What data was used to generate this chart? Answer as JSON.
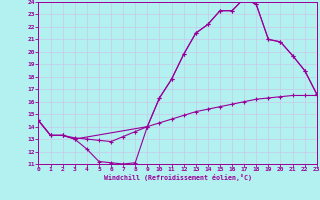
{
  "bg_color": "#b3f0f0",
  "grid_color": "#c8c8e8",
  "line_color": "#990099",
  "xlim": [
    0,
    23
  ],
  "ylim": [
    11,
    24
  ],
  "xticks": [
    0,
    1,
    2,
    3,
    4,
    5,
    6,
    7,
    8,
    9,
    10,
    11,
    12,
    13,
    14,
    15,
    16,
    17,
    18,
    19,
    20,
    21,
    22,
    23
  ],
  "yticks": [
    11,
    12,
    13,
    14,
    15,
    16,
    17,
    18,
    19,
    20,
    21,
    22,
    23,
    24
  ],
  "xlabel": "Windchill (Refroidissement éolien,°C)",
  "curve1_x": [
    0,
    1,
    2,
    3,
    4,
    5,
    6,
    7,
    8,
    9,
    10,
    11,
    12,
    13,
    14,
    15,
    16,
    17,
    18,
    19,
    20,
    21,
    22,
    23
  ],
  "curve1_y": [
    14.5,
    13.3,
    13.3,
    13.0,
    12.2,
    11.2,
    11.1,
    11.0,
    11.1,
    14.0,
    16.3,
    17.8,
    19.8,
    21.5,
    22.2,
    23.3,
    23.3,
    24.3,
    23.8,
    21.0,
    20.8,
    19.7,
    18.5,
    16.6
  ],
  "curve2_x": [
    0,
    1,
    2,
    3,
    9,
    10,
    11,
    12,
    13,
    14,
    15,
    16,
    17,
    18,
    19,
    20,
    21,
    22,
    23
  ],
  "curve2_y": [
    14.5,
    13.3,
    13.3,
    13.0,
    14.0,
    16.3,
    17.8,
    19.8,
    21.5,
    22.2,
    23.3,
    23.3,
    24.3,
    23.8,
    21.0,
    20.8,
    19.7,
    18.5,
    16.6
  ],
  "curve3_x": [
    0,
    1,
    2,
    3,
    4,
    5,
    6,
    7,
    8,
    9,
    10,
    11,
    12,
    13,
    14,
    15,
    16,
    17,
    18,
    19,
    20,
    21,
    22,
    23
  ],
  "curve3_y": [
    14.5,
    13.3,
    13.3,
    13.1,
    13.0,
    12.9,
    12.8,
    13.2,
    13.6,
    14.0,
    14.3,
    14.6,
    14.9,
    15.2,
    15.4,
    15.6,
    15.8,
    16.0,
    16.2,
    16.3,
    16.4,
    16.5,
    16.5,
    16.5
  ]
}
